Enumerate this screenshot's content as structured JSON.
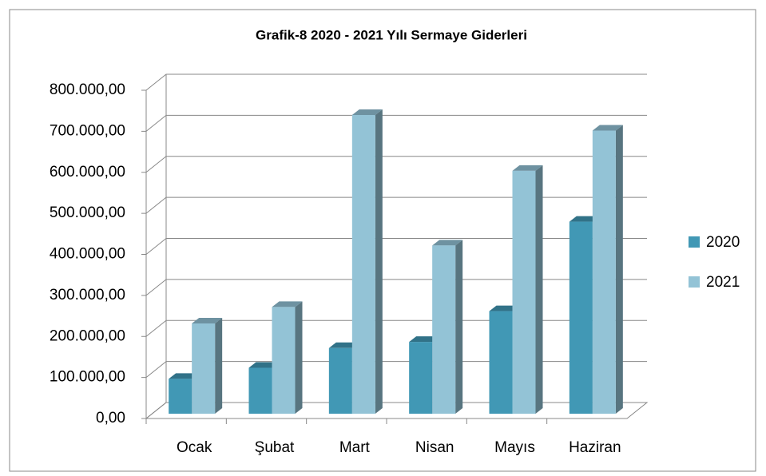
{
  "chart_data": {
    "type": "bar3d",
    "title": "Grafik-8 2020 - 2021 Yılı Sermaye Giderleri",
    "categories": [
      "Ocak",
      "Şubat",
      "Mart",
      "Nisan",
      "Mayıs",
      "Haziran"
    ],
    "series": [
      {
        "name": "2020",
        "color": "#4198b5",
        "values": [
          85000,
          112000,
          160000,
          175000,
          250000,
          468000
        ]
      },
      {
        "name": "2021",
        "color": "#93c3d6",
        "values": [
          220000,
          260000,
          728000,
          410000,
          592000,
          690000
        ]
      }
    ],
    "ylim": [
      0,
      800000
    ],
    "yticks": [
      {
        "value": 0,
        "label": "0,00"
      },
      {
        "value": 100000,
        "label": "100.000,00"
      },
      {
        "value": 200000,
        "label": "200.000,00"
      },
      {
        "value": 300000,
        "label": "300.000,00"
      },
      {
        "value": 400000,
        "label": "400.000,00"
      },
      {
        "value": 500000,
        "label": "500.000,00"
      },
      {
        "value": 600000,
        "label": "600.000,00"
      },
      {
        "value": 700000,
        "label": "700.000,00"
      },
      {
        "value": 800000,
        "label": "800.000,00"
      }
    ],
    "grid": true,
    "legend": "right"
  }
}
